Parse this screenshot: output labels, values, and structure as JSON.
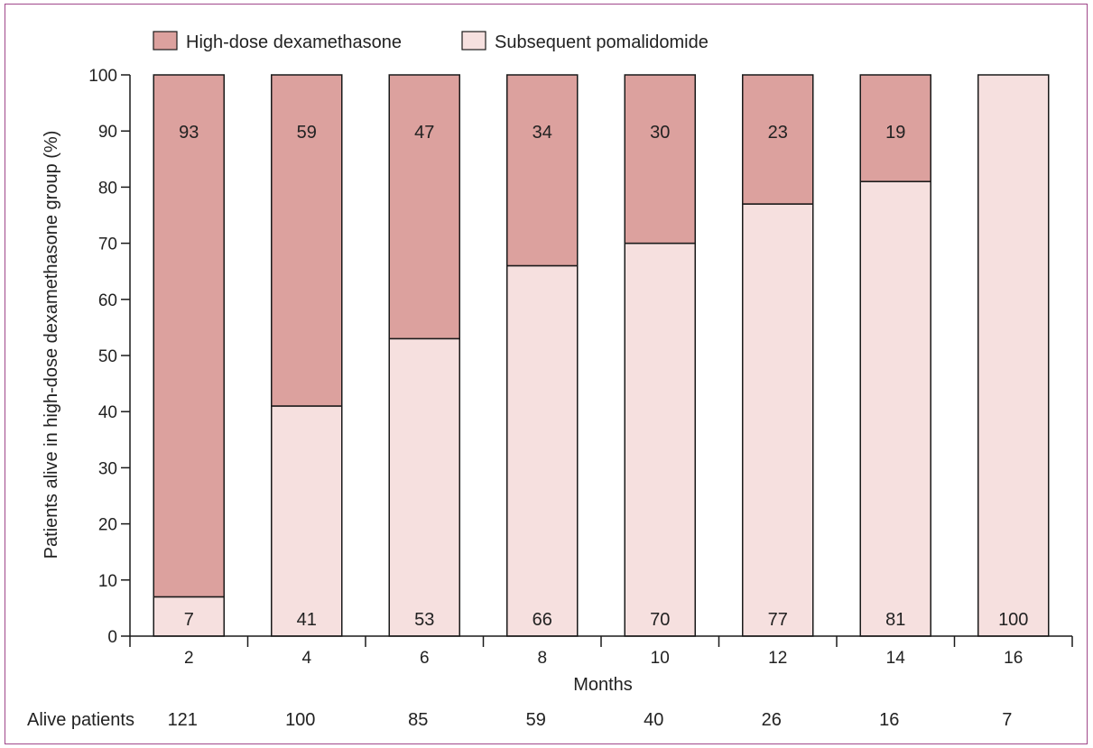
{
  "chart_data": {
    "type": "bar",
    "stacked": true,
    "normalized_percent": true,
    "categories": [
      "2",
      "4",
      "6",
      "8",
      "10",
      "12",
      "14",
      "16"
    ],
    "series": [
      {
        "name": "Subsequent pomalidomide",
        "values": [
          7,
          41,
          53,
          66,
          70,
          77,
          81,
          100
        ],
        "color": "#f6e0df"
      },
      {
        "name": "High-dose dexamethasone",
        "values": [
          93,
          59,
          47,
          34,
          30,
          23,
          19,
          0
        ],
        "color": "#dca19e"
      }
    ],
    "bar_labels": {
      "Subsequent pomalidomide": [
        "7",
        "41",
        "53",
        "66",
        "70",
        "77",
        "81",
        "100"
      ],
      "High-dose dexamethasone": [
        "93",
        "59",
        "47",
        "34",
        "30",
        "23",
        "19",
        ""
      ]
    },
    "xlabel": "Months",
    "ylabel": "Patients alive in high-dose dexamethasone group (%)",
    "ylim": [
      0,
      100
    ],
    "yticks": [
      0,
      10,
      20,
      30,
      40,
      50,
      60,
      70,
      80,
      90,
      100
    ],
    "grid": false,
    "legend_placement": "top",
    "legend": [
      "High-dose dexamethasone",
      "Subsequent pomalidomide"
    ],
    "alive_patients": {
      "label": "Alive patients",
      "values": [
        "121",
        "100",
        "85",
        "59",
        "40",
        "26",
        "16",
        "7"
      ]
    }
  }
}
